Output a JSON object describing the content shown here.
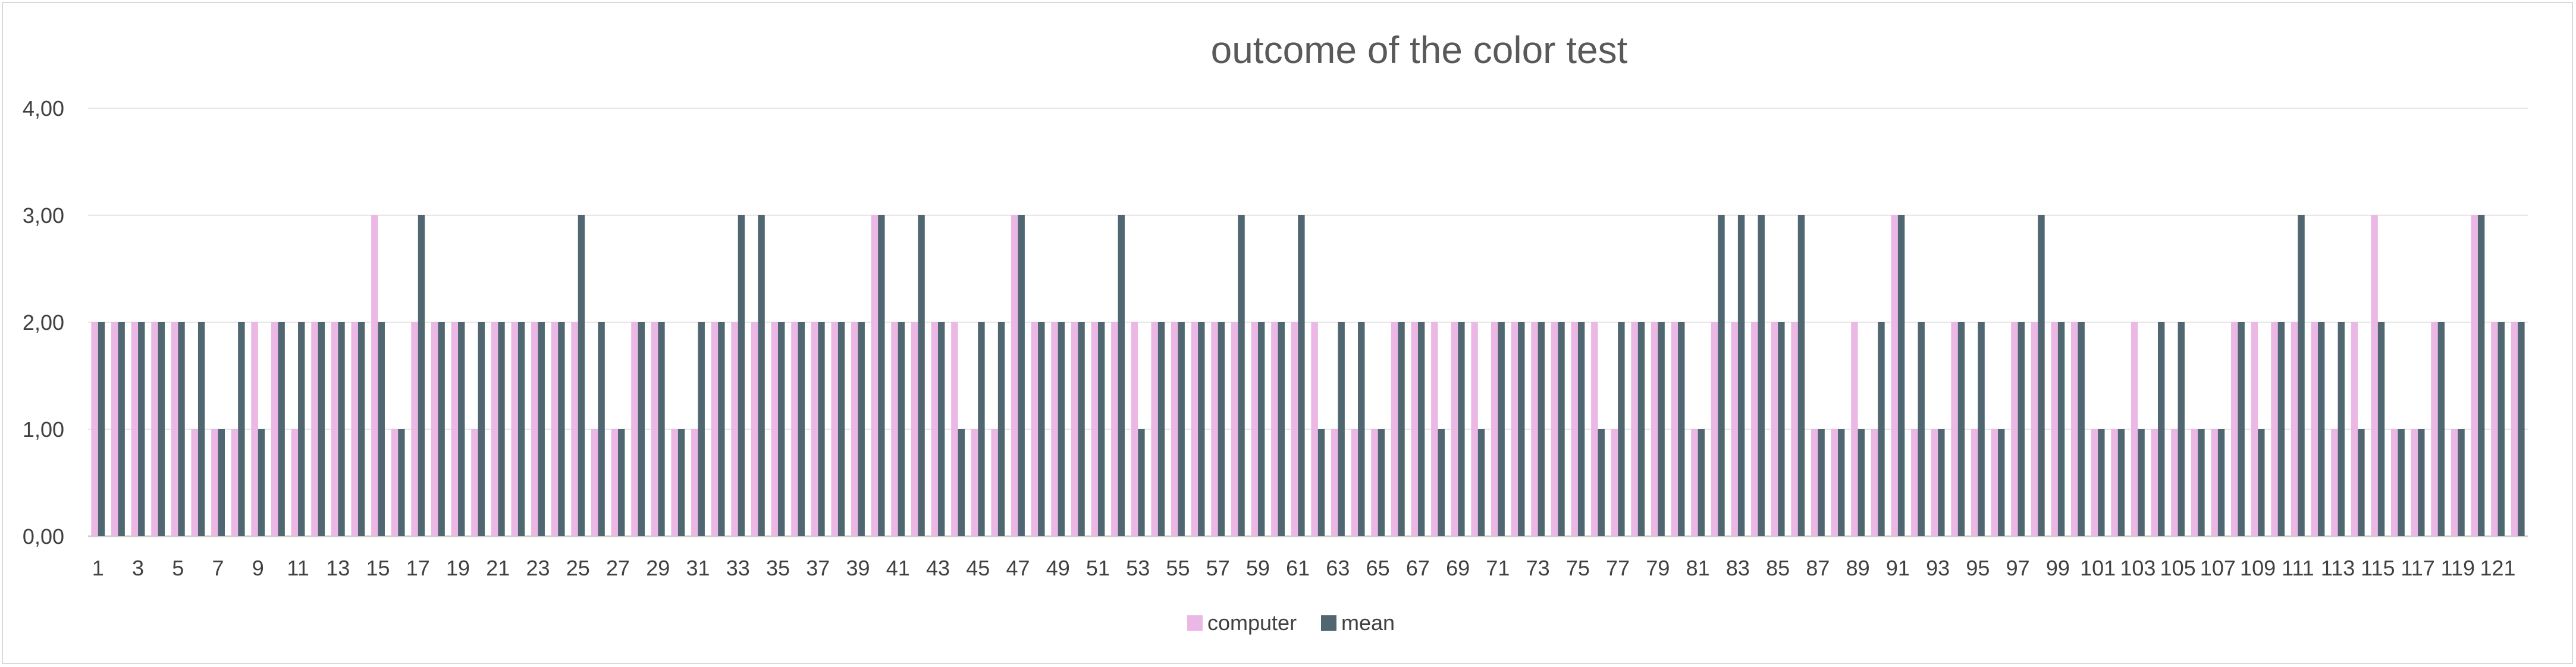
{
  "chart_data": {
    "type": "bar",
    "title": "outcome of the color test",
    "xlabel": "",
    "ylabel": "",
    "ylim": [
      0,
      4
    ],
    "y_ticks": [
      "0,00",
      "1,00",
      "2,00",
      "3,00",
      "4,00"
    ],
    "y_tick_values": [
      0,
      1,
      2,
      3,
      4
    ],
    "x_tick_step": 2,
    "grid": true,
    "legend_position": "bottom",
    "categories": [
      "1",
      "2",
      "3",
      "4",
      "5",
      "6",
      "7",
      "8",
      "9",
      "10",
      "11",
      "12",
      "13",
      "14",
      "15",
      "16",
      "17",
      "18",
      "19",
      "20",
      "21",
      "22",
      "23",
      "24",
      "25",
      "26",
      "27",
      "28",
      "29",
      "30",
      "31",
      "32",
      "33",
      "34",
      "35",
      "36",
      "37",
      "38",
      "39",
      "40",
      "41",
      "42",
      "43",
      "44",
      "45",
      "46",
      "47",
      "48",
      "49",
      "50",
      "51",
      "52",
      "53",
      "54",
      "55",
      "56",
      "57",
      "58",
      "59",
      "60",
      "61",
      "62",
      "63",
      "64",
      "65",
      "66",
      "67",
      "68",
      "69",
      "70",
      "71",
      "72",
      "73",
      "74",
      "75",
      "76",
      "77",
      "78",
      "79",
      "80",
      "81",
      "82",
      "83",
      "84",
      "85",
      "86",
      "87",
      "88",
      "89",
      "90",
      "91",
      "92",
      "93",
      "94",
      "95",
      "96",
      "97",
      "98",
      "99",
      "100",
      "101",
      "102",
      "103",
      "104",
      "105",
      "106",
      "107",
      "108",
      "109",
      "110",
      "111",
      "112",
      "113",
      "114",
      "115",
      "116",
      "117",
      "118",
      "119",
      "120",
      "121",
      "122"
    ],
    "series": [
      {
        "name": "computer",
        "color": "#EBB7E5",
        "values": [
          2,
          2,
          2,
          2,
          2,
          1,
          1,
          1,
          2,
          2,
          1,
          2,
          2,
          2,
          3,
          1,
          2,
          2,
          2,
          1,
          2,
          2,
          2,
          2,
          2,
          1,
          1,
          2,
          2,
          1,
          1,
          2,
          2,
          2,
          2,
          2,
          2,
          2,
          2,
          3,
          2,
          2,
          2,
          2,
          1,
          1,
          3,
          2,
          2,
          2,
          2,
          2,
          2,
          2,
          2,
          2,
          2,
          2,
          2,
          2,
          2,
          2,
          1,
          1,
          1,
          2,
          2,
          2,
          2,
          2,
          2,
          2,
          2,
          2,
          2,
          2,
          1,
          2,
          2,
          2,
          1,
          2,
          2,
          2,
          2,
          2,
          1,
          1,
          2,
          1,
          3,
          1,
          1,
          2,
          1,
          1,
          2,
          2,
          2,
          2,
          1,
          1,
          2,
          1,
          1,
          1,
          1,
          2,
          2,
          2,
          2,
          2,
          1,
          2,
          3,
          1,
          1,
          2,
          1,
          3,
          2,
          2
        ]
      },
      {
        "name": "mean",
        "color": "#506671",
        "values": [
          2,
          2,
          2,
          2,
          2,
          2,
          1,
          2,
          1,
          2,
          2,
          2,
          2,
          2,
          2,
          1,
          3,
          2,
          2,
          2,
          2,
          2,
          2,
          2,
          3,
          2,
          1,
          2,
          2,
          1,
          2,
          2,
          3,
          3,
          2,
          2,
          2,
          2,
          2,
          3,
          2,
          3,
          2,
          1,
          2,
          2,
          3,
          2,
          2,
          2,
          2,
          3,
          1,
          2,
          2,
          2,
          2,
          3,
          2,
          2,
          3,
          1,
          2,
          2,
          1,
          2,
          2,
          1,
          2,
          1,
          2,
          2,
          2,
          2,
          2,
          1,
          2,
          2,
          2,
          2,
          1,
          3,
          3,
          3,
          2,
          3,
          1,
          1,
          1,
          2,
          3,
          2,
          1,
          2,
          2,
          1,
          2,
          3,
          2,
          2,
          1,
          1,
          1,
          2,
          2,
          1,
          1,
          2,
          1,
          2,
          3,
          2,
          2,
          1,
          2,
          1,
          1,
          2,
          1,
          3,
          2,
          2
        ]
      }
    ]
  }
}
